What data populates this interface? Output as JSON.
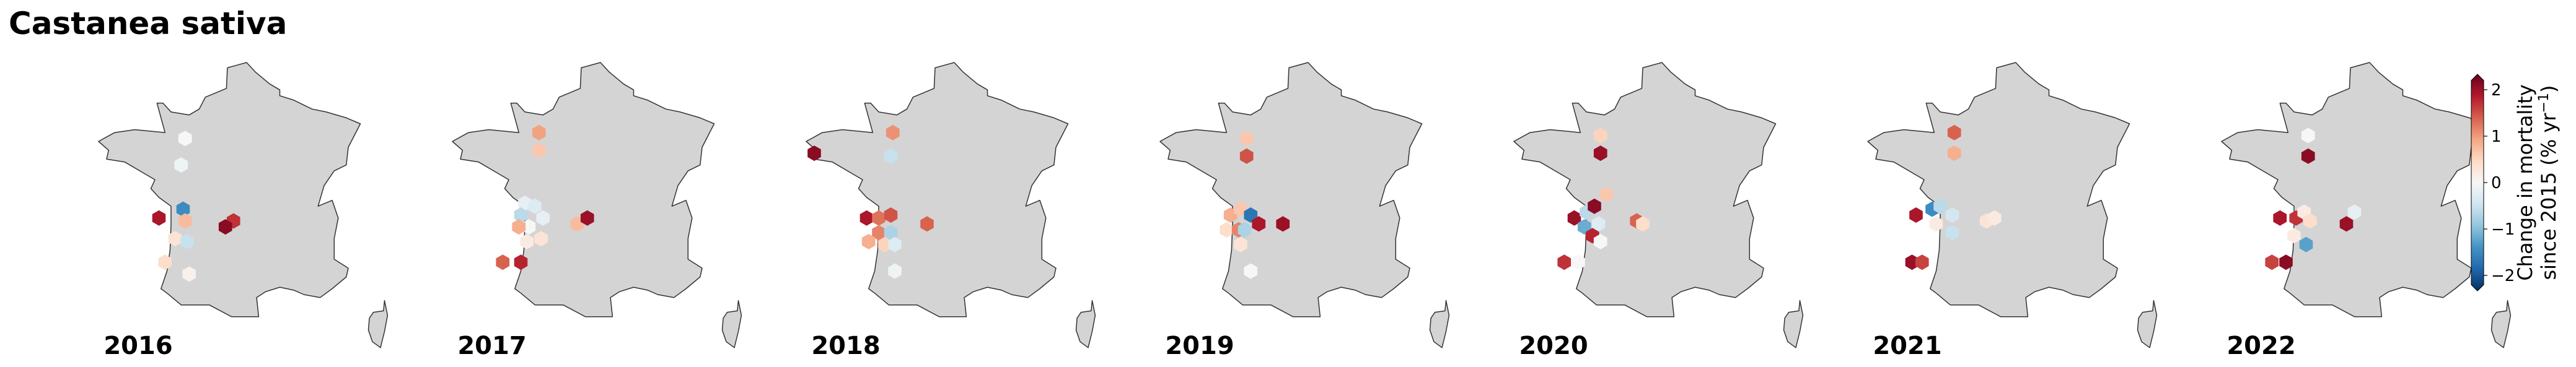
{
  "title": "Castanea sativa",
  "colors": {
    "land_fill": "#d4d4d4",
    "land_stroke": "#333333",
    "scale": [
      "#053061",
      "#2166ac",
      "#4393c3",
      "#92c5de",
      "#d1e5f0",
      "#f7f7f7",
      "#fddbc7",
      "#f4a582",
      "#d6604d",
      "#b2182b",
      "#67001f"
    ]
  },
  "colorbar": {
    "min": -2.2,
    "max": 2.2,
    "ticks": [
      "2",
      "1",
      "0",
      "−1",
      "−2"
    ],
    "tick_values": [
      2,
      1,
      0,
      -1,
      -2
    ],
    "label_line1": "Change in mortality",
    "label_line2": "since 2015 (% yr",
    "label_sup": "−1",
    "label_end": ")"
  },
  "panels": [
    {
      "year": "2016",
      "cells": [
        {
          "lon": -0.5,
          "lat": 48.5,
          "value": 0.0
        },
        {
          "lon": -0.7,
          "lat": 47.6,
          "value": -0.1
        },
        {
          "lon": -1.8,
          "lat": 45.8,
          "value": 1.8
        },
        {
          "lon": -0.6,
          "lat": 46.1,
          "value": -1.4
        },
        {
          "lon": -0.5,
          "lat": 45.7,
          "value": 0.7
        },
        {
          "lon": -1.0,
          "lat": 45.1,
          "value": 0.3
        },
        {
          "lon": -0.4,
          "lat": 45.0,
          "value": -0.5
        },
        {
          "lon": 1.9,
          "lat": 45.7,
          "value": 1.6
        },
        {
          "lon": 1.5,
          "lat": 45.5,
          "value": 2.0
        },
        {
          "lon": -1.5,
          "lat": 44.3,
          "value": 0.4
        },
        {
          "lon": -0.3,
          "lat": 43.9,
          "value": 0.1
        }
      ]
    },
    {
      "year": "2017",
      "cells": [
        {
          "lon": -0.5,
          "lat": 48.7,
          "value": 0.9
        },
        {
          "lon": -0.5,
          "lat": 48.1,
          "value": 0.6
        },
        {
          "lon": -1.2,
          "lat": 46.3,
          "value": -0.2
        },
        {
          "lon": -0.7,
          "lat": 46.2,
          "value": -0.3
        },
        {
          "lon": -1.4,
          "lat": 45.9,
          "value": -0.6
        },
        {
          "lon": -0.3,
          "lat": 45.8,
          "value": -0.2
        },
        {
          "lon": -1.0,
          "lat": 45.5,
          "value": 0.0
        },
        {
          "lon": -1.5,
          "lat": 45.5,
          "value": 0.8
        },
        {
          "lon": -0.4,
          "lat": 45.1,
          "value": 0.3
        },
        {
          "lon": -1.1,
          "lat": 45.0,
          "value": 0.2
        },
        {
          "lon": 1.4,
          "lat": 45.6,
          "value": 0.7
        },
        {
          "lon": 1.9,
          "lat": 45.8,
          "value": 1.9
        },
        {
          "lon": -2.3,
          "lat": 44.3,
          "value": 1.3
        },
        {
          "lon": -1.4,
          "lat": 44.3,
          "value": 1.7
        }
      ]
    },
    {
      "year": "2018",
      "cells": [
        {
          "lon": -4.4,
          "lat": 48.0,
          "value": 2.0
        },
        {
          "lon": -0.5,
          "lat": 48.7,
          "value": 1.0
        },
        {
          "lon": -0.6,
          "lat": 47.9,
          "value": -0.5
        },
        {
          "lon": -1.8,
          "lat": 45.8,
          "value": 1.8
        },
        {
          "lon": -1.2,
          "lat": 45.8,
          "value": 1.2
        },
        {
          "lon": -0.6,
          "lat": 45.9,
          "value": 1.4
        },
        {
          "lon": -1.2,
          "lat": 45.3,
          "value": 1.1
        },
        {
          "lon": -0.6,
          "lat": 45.3,
          "value": -0.7
        },
        {
          "lon": -1.7,
          "lat": 45.0,
          "value": 0.8
        },
        {
          "lon": -0.9,
          "lat": 44.9,
          "value": 0.5
        },
        {
          "lon": -0.4,
          "lat": 44.9,
          "value": -0.3
        },
        {
          "lon": 1.2,
          "lat": 45.6,
          "value": 1.3
        },
        {
          "lon": -0.4,
          "lat": 44.0,
          "value": -0.1
        }
      ]
    },
    {
      "year": "2019",
      "cells": [
        {
          "lon": -0.5,
          "lat": 48.5,
          "value": 0.6
        },
        {
          "lon": -0.5,
          "lat": 47.9,
          "value": 1.4
        },
        {
          "lon": -1.3,
          "lat": 45.9,
          "value": 0.8
        },
        {
          "lon": -0.8,
          "lat": 46.1,
          "value": 0.6
        },
        {
          "lon": -0.3,
          "lat": 45.9,
          "value": -1.6
        },
        {
          "lon": 0.1,
          "lat": 45.6,
          "value": 1.8
        },
        {
          "lon": -1.5,
          "lat": 45.4,
          "value": 0.4
        },
        {
          "lon": -0.9,
          "lat": 45.4,
          "value": 1.1
        },
        {
          "lon": -0.6,
          "lat": 45.4,
          "value": -0.7
        },
        {
          "lon": -0.8,
          "lat": 44.9,
          "value": 0.3
        },
        {
          "lon": 1.3,
          "lat": 45.6,
          "value": 1.9
        },
        {
          "lon": -0.3,
          "lat": 44.0,
          "value": 0.0
        }
      ]
    },
    {
      "year": "2020",
      "cells": [
        {
          "lon": -0.5,
          "lat": 48.6,
          "value": 0.5
        },
        {
          "lon": -0.5,
          "lat": 48.0,
          "value": 1.9
        },
        {
          "lon": -0.2,
          "lat": 46.6,
          "value": 0.6
        },
        {
          "lon": -1.8,
          "lat": 45.8,
          "value": 1.9
        },
        {
          "lon": -1.2,
          "lat": 46.0,
          "value": -0.6
        },
        {
          "lon": -0.8,
          "lat": 46.2,
          "value": 2.0
        },
        {
          "lon": -1.3,
          "lat": 45.5,
          "value": -1.1
        },
        {
          "lon": -0.6,
          "lat": 45.6,
          "value": -0.3
        },
        {
          "lon": -0.9,
          "lat": 45.2,
          "value": 1.7
        },
        {
          "lon": -0.5,
          "lat": 45.0,
          "value": 0.0
        },
        {
          "lon": 1.3,
          "lat": 45.7,
          "value": 1.3
        },
        {
          "lon": 1.6,
          "lat": 45.6,
          "value": 0.4
        },
        {
          "lon": -2.3,
          "lat": 44.3,
          "value": 1.6
        },
        {
          "lon": -1.6,
          "lat": 44.3,
          "value": 0.0
        }
      ]
    },
    {
      "year": "2021",
      "cells": [
        {
          "lon": -0.5,
          "lat": 48.7,
          "value": 1.3
        },
        {
          "lon": -0.5,
          "lat": 48.0,
          "value": 0.8
        },
        {
          "lon": -2.4,
          "lat": 45.9,
          "value": 1.8
        },
        {
          "lon": -1.6,
          "lat": 46.1,
          "value": -1.4
        },
        {
          "lon": -1.2,
          "lat": 46.2,
          "value": -0.6
        },
        {
          "lon": -0.6,
          "lat": 45.9,
          "value": -0.4
        },
        {
          "lon": -1.4,
          "lat": 45.6,
          "value": 0.2
        },
        {
          "lon": -0.6,
          "lat": 45.3,
          "value": -0.5
        },
        {
          "lon": 1.1,
          "lat": 45.7,
          "value": 0.3
        },
        {
          "lon": 1.5,
          "lat": 45.8,
          "value": 0.2
        },
        {
          "lon": -2.6,
          "lat": 44.3,
          "value": 1.9
        },
        {
          "lon": -2.1,
          "lat": 44.3,
          "value": 1.5
        }
      ]
    },
    {
      "year": "2022",
      "cells": [
        {
          "lon": -0.5,
          "lat": 48.6,
          "value": 0.0
        },
        {
          "lon": -0.5,
          "lat": 47.9,
          "value": 2.0
        },
        {
          "lon": -1.9,
          "lat": 45.8,
          "value": 1.8
        },
        {
          "lon": -1.1,
          "lat": 45.8,
          "value": 1.6
        },
        {
          "lon": -0.7,
          "lat": 46.0,
          "value": 0.2
        },
        {
          "lon": -0.4,
          "lat": 45.7,
          "value": 0.4
        },
        {
          "lon": -1.2,
          "lat": 45.2,
          "value": 0.2
        },
        {
          "lon": -0.6,
          "lat": 44.9,
          "value": -1.2
        },
        {
          "lon": 1.4,
          "lat": 45.6,
          "value": 1.9
        },
        {
          "lon": 1.8,
          "lat": 46.0,
          "value": -0.2
        },
        {
          "lon": -2.3,
          "lat": 44.3,
          "value": 1.5
        },
        {
          "lon": -1.6,
          "lat": 44.3,
          "value": 2.0
        }
      ]
    }
  ]
}
